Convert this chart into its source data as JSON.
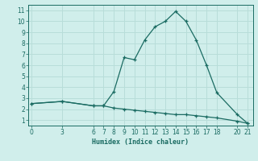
{
  "line1_x": [
    0,
    3,
    6,
    7,
    8,
    9,
    10,
    11,
    12,
    13,
    14,
    15,
    16,
    17,
    18,
    20,
    21
  ],
  "line1_y": [
    2.5,
    2.7,
    2.3,
    2.3,
    3.6,
    6.7,
    6.5,
    8.3,
    9.5,
    10.0,
    10.9,
    10.0,
    8.3,
    6.0,
    3.5,
    1.5,
    0.7
  ],
  "line2_x": [
    0,
    3,
    6,
    7,
    8,
    9,
    10,
    11,
    12,
    13,
    14,
    15,
    16,
    17,
    18,
    20,
    21
  ],
  "line2_y": [
    2.5,
    2.7,
    2.3,
    2.3,
    2.1,
    2.0,
    1.9,
    1.8,
    1.7,
    1.6,
    1.5,
    1.5,
    1.4,
    1.3,
    1.2,
    0.9,
    0.7
  ],
  "line_color": "#1a6b62",
  "bg_color": "#d0eeeb",
  "grid_color": "#b8ddd9",
  "xlabel": "Humidex (Indice chaleur)",
  "yticks": [
    1,
    2,
    3,
    4,
    5,
    6,
    7,
    8,
    9,
    10,
    11
  ],
  "xticks": [
    0,
    3,
    6,
    7,
    8,
    9,
    10,
    11,
    12,
    13,
    14,
    15,
    16,
    17,
    18,
    20,
    21
  ],
  "ylim": [
    0.5,
    11.5
  ],
  "xlim": [
    -0.3,
    21.5
  ]
}
